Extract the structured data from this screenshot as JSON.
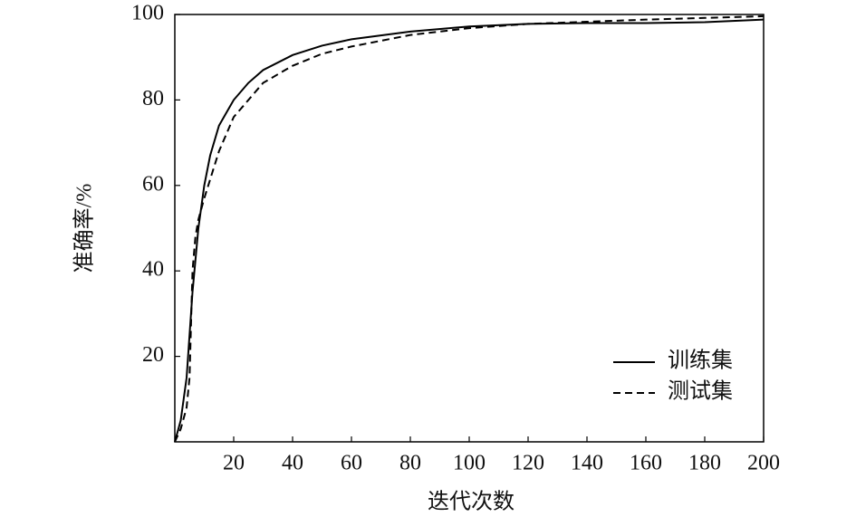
{
  "chart_data": {
    "type": "line",
    "xlabel": "迭代次数",
    "ylabel": "准确率/%",
    "xlim": [
      0,
      200
    ],
    "ylim": [
      0,
      100
    ],
    "xticks": [
      20,
      40,
      60,
      80,
      100,
      120,
      140,
      160,
      180,
      200
    ],
    "yticks": [
      20,
      40,
      60,
      80,
      100
    ],
    "legend": "lower right",
    "series": [
      {
        "name": "训练集",
        "color": "#000000",
        "dash": "solid",
        "x": [
          0,
          2,
          4,
          6,
          8,
          10,
          12,
          15,
          20,
          25,
          30,
          40,
          50,
          60,
          80,
          100,
          120,
          140,
          160,
          180,
          200
        ],
        "values": [
          0,
          5,
          15,
          35,
          50,
          60,
          67,
          74,
          80,
          84,
          87,
          90.5,
          92.7,
          94.2,
          96,
          97.2,
          97.8,
          98,
          98,
          98.2,
          98.8
        ]
      },
      {
        "name": "测试集",
        "color": "#000000",
        "dash": "dashed",
        "x": [
          0,
          2,
          4,
          5,
          6,
          7,
          8,
          10,
          15,
          20,
          30,
          40,
          50,
          60,
          80,
          100,
          120,
          140,
          160,
          180,
          200
        ],
        "values": [
          0,
          3,
          8,
          15,
          40,
          48,
          52,
          57,
          68,
          76,
          84,
          88,
          90.8,
          92.5,
          95.2,
          96.8,
          97.8,
          98.3,
          98.8,
          99.2,
          99.6
        ]
      }
    ]
  }
}
